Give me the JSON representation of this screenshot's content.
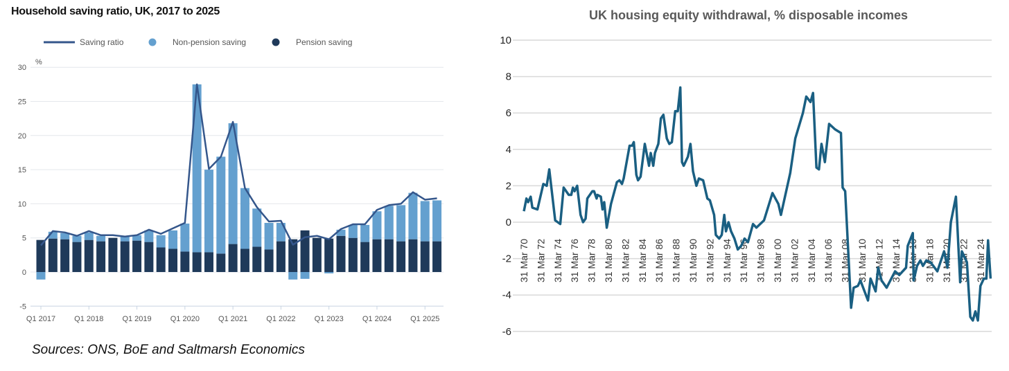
{
  "left_title": "Household saving ratio, UK, 2017 to 2025",
  "right_title": "UK housing equity withdrawal, % disposable incomes",
  "sources": "Sources: ONS, BoE and Saltmarsh Economics",
  "chart_data": [
    {
      "type": "bar",
      "title": "Household saving ratio, UK, 2017 to 2025",
      "ylabel": "%",
      "ylim": [
        -5,
        30
      ],
      "yticks": [
        -5,
        0,
        5,
        10,
        15,
        20,
        25,
        30
      ],
      "xtick_labels": [
        "Q1 2017",
        "Q1 2018",
        "Q1 2019",
        "Q1 2020",
        "Q1 2021",
        "Q1 2022",
        "Q1 2023",
        "Q1 2024",
        "Q1 2025"
      ],
      "legend": [
        "Saving ratio",
        "Non-pension saving",
        "Pension saving"
      ],
      "legend_position": "top",
      "colors": {
        "line": "#34568b",
        "non_pension": "#64a0cf",
        "pension": "#1f3a5a"
      },
      "categories": [
        "Q1 2017",
        "Q2 2017",
        "Q3 2017",
        "Q4 2017",
        "Q1 2018",
        "Q2 2018",
        "Q3 2018",
        "Q4 2018",
        "Q1 2019",
        "Q2 2019",
        "Q3 2019",
        "Q4 2019",
        "Q1 2020",
        "Q2 2020",
        "Q3 2020",
        "Q4 2020",
        "Q1 2021",
        "Q2 2021",
        "Q3 2021",
        "Q4 2021",
        "Q1 2022",
        "Q2 2022",
        "Q3 2022",
        "Q4 2022",
        "Q1 2023",
        "Q2 2023",
        "Q3 2023",
        "Q4 2023",
        "Q1 2024",
        "Q2 2024",
        "Q3 2024",
        "Q4 2024",
        "Q1 2025",
        "Q2 2025"
      ],
      "series": [
        {
          "name": "Pension saving",
          "type": "bar",
          "values": [
            4.7,
            4.9,
            4.8,
            4.4,
            4.7,
            4.5,
            5.0,
            4.5,
            4.6,
            4.4,
            3.6,
            3.4,
            3.0,
            2.9,
            2.9,
            2.7,
            4.1,
            3.4,
            3.7,
            3.3,
            4.5,
            4.8,
            6.1,
            5.0,
            4.9,
            5.3,
            5.0,
            4.4,
            4.8,
            4.8,
            4.5,
            4.8,
            4.5,
            4.5
          ]
        },
        {
          "name": "Non-pension saving",
          "type": "bar",
          "values": [
            -1.1,
            1.0,
            0.9,
            0.9,
            1.1,
            0.8,
            0.0,
            0.7,
            0.8,
            1.7,
            1.8,
            2.7,
            4.1,
            24.6,
            12.1,
            14.2,
            17.7,
            8.9,
            5.6,
            3.9,
            2.7,
            -1.1,
            -1.0,
            0.0,
            -0.2,
            0.9,
            1.9,
            2.5,
            4.1,
            4.9,
            5.3,
            6.8,
            5.9,
            6.0
          ]
        },
        {
          "name": "Saving ratio",
          "type": "line",
          "values": [
            3.9,
            6.0,
            5.8,
            5.3,
            6.0,
            5.4,
            5.4,
            5.2,
            5.4,
            6.2,
            5.6,
            6.4,
            7.2,
            27.5,
            15.1,
            16.9,
            22.0,
            12.3,
            9.5,
            7.4,
            7.5,
            4.0,
            5.1,
            5.3,
            4.8,
            6.3,
            7.0,
            7.0,
            9.1,
            9.8,
            10.0,
            11.7,
            10.6,
            10.8
          ]
        }
      ]
    },
    {
      "type": "line",
      "title": "UK housing equity withdrawal, % disposable incomes",
      "ylim": [
        -6,
        10
      ],
      "yticks": [
        -6,
        -4,
        -2,
        0,
        2,
        4,
        6,
        8,
        10
      ],
      "grid": true,
      "color": "#1a5f82",
      "xtick_labels": [
        "31 Mar 70",
        "31 Mar 72",
        "31 Mar 74",
        "31 Mar 76",
        "31 Mar 78",
        "31 Mar 80",
        "31 Mar 82",
        "31 Mar 84",
        "31 Mar 86",
        "31 Mar 88",
        "31 Mar 90",
        "31 Mar 92",
        "31 Mar 94",
        "31 Mar 96",
        "31 Mar 98",
        "31 Mar 00",
        "31 Mar 02",
        "31 Mar 04",
        "31 Mar 06",
        "31 Mar 08",
        "31 Mar 10",
        "31 Mar 12",
        "31 Mar 14",
        "31 Mar 16",
        "31 Mar 18",
        "31 Mar 20",
        "31 Mar 22",
        "31 Mar 24"
      ],
      "x": [
        1970.0,
        1970.3,
        1970.5,
        1970.8,
        1971.0,
        1971.6,
        1972.1,
        1972.3,
        1972.7,
        1973.0,
        1973.7,
        1974.3,
        1974.7,
        1975.3,
        1975.6,
        1975.8,
        1976.0,
        1976.3,
        1976.7,
        1977.0,
        1977.3,
        1977.5,
        1978.1,
        1978.3,
        1978.6,
        1978.7,
        1979.1,
        1979.3,
        1979.5,
        1979.8,
        1980.3,
        1981.0,
        1981.3,
        1981.6,
        1981.8,
        1982.5,
        1982.8,
        1983.0,
        1983.3,
        1983.5,
        1983.8,
        1984.3,
        1984.8,
        1985.0,
        1985.3,
        1985.5,
        1985.9,
        1986.2,
        1986.5,
        1986.9,
        1987.2,
        1987.5,
        1987.9,
        1988.2,
        1988.5,
        1988.7,
        1988.9,
        1989.4,
        1989.7,
        1990.0,
        1990.4,
        1990.7,
        1991.2,
        1991.7,
        1992.0,
        1992.5,
        1992.7,
        1993.1,
        1993.4,
        1993.7,
        1993.9,
        1994.2,
        1994.5,
        1994.9,
        1995.3,
        1995.7,
        1996.1,
        1996.5,
        1997.1,
        1997.5,
        1998.4,
        1999.4,
        2000.1,
        2000.4,
        2001.5,
        2002.1,
        2003.0,
        2003.4,
        2003.9,
        2004.2,
        2004.6,
        2004.9,
        2005.2,
        2005.6,
        2006.1,
        2006.8,
        2007.5,
        2007.7,
        2008.0,
        2008.7,
        2009.0,
        2009.5,
        2009.8,
        2010.7,
        2011.0,
        2011.6,
        2011.9,
        2012.3,
        2012.9,
        2013.9,
        2014.4,
        2015.2,
        2015.4,
        2016.0,
        2016.1,
        2016.5,
        2016.9,
        2017.2,
        2017.6,
        2018.1,
        2018.9,
        2019.7,
        2020.1,
        2020.5,
        2021.1,
        2021.6,
        2021.8,
        2022.4,
        2022.8,
        2023.1,
        2023.4,
        2023.7,
        2024.0,
        2024.4,
        2024.7,
        2024.9,
        2025.2
      ],
      "y": [
        0.6,
        1.3,
        1.1,
        1.4,
        0.8,
        0.7,
        1.7,
        2.1,
        2.0,
        2.9,
        0.1,
        -0.1,
        1.9,
        1.5,
        1.5,
        1.9,
        1.7,
        2.0,
        0.4,
        0.0,
        0.2,
        1.3,
        1.7,
        1.7,
        1.3,
        1.5,
        1.4,
        0.7,
        1.1,
        -0.3,
        1.0,
        2.2,
        2.3,
        2.1,
        2.4,
        4.2,
        4.2,
        4.4,
        2.6,
        2.3,
        2.5,
        4.3,
        3.1,
        3.8,
        3.1,
        3.8,
        4.3,
        5.7,
        5.9,
        4.6,
        4.3,
        4.4,
        6.1,
        6.1,
        7.4,
        3.3,
        3.1,
        3.6,
        4.3,
        2.8,
        2.0,
        2.4,
        2.3,
        1.3,
        1.2,
        0.4,
        -0.7,
        -0.9,
        -0.7,
        0.4,
        -0.5,
        0.0,
        -0.5,
        -0.9,
        -1.5,
        -1.3,
        -0.9,
        -1.1,
        -0.1,
        -0.3,
        0.1,
        1.6,
        1.0,
        0.4,
        2.7,
        4.6,
        6.0,
        6.9,
        6.6,
        7.1,
        3.0,
        2.9,
        4.3,
        3.3,
        5.4,
        5.1,
        4.9,
        1.9,
        1.7,
        -4.7,
        -3.6,
        -3.5,
        -3.2,
        -4.3,
        -3.1,
        -3.8,
        -2.5,
        -3.2,
        -3.6,
        -2.7,
        -2.9,
        -2.5,
        -1.3,
        -0.6,
        -3.2,
        -2.4,
        -2.1,
        -2.4,
        -2.1,
        -2.2,
        -2.7,
        -1.6,
        -2.5,
        0.0,
        1.4,
        -3.3,
        -1.6,
        -2.2,
        -5.2,
        -5.4,
        -4.9,
        -5.4,
        -3.5,
        -3.1,
        -3.1,
        -1.0,
        -3.1
      ]
    }
  ]
}
